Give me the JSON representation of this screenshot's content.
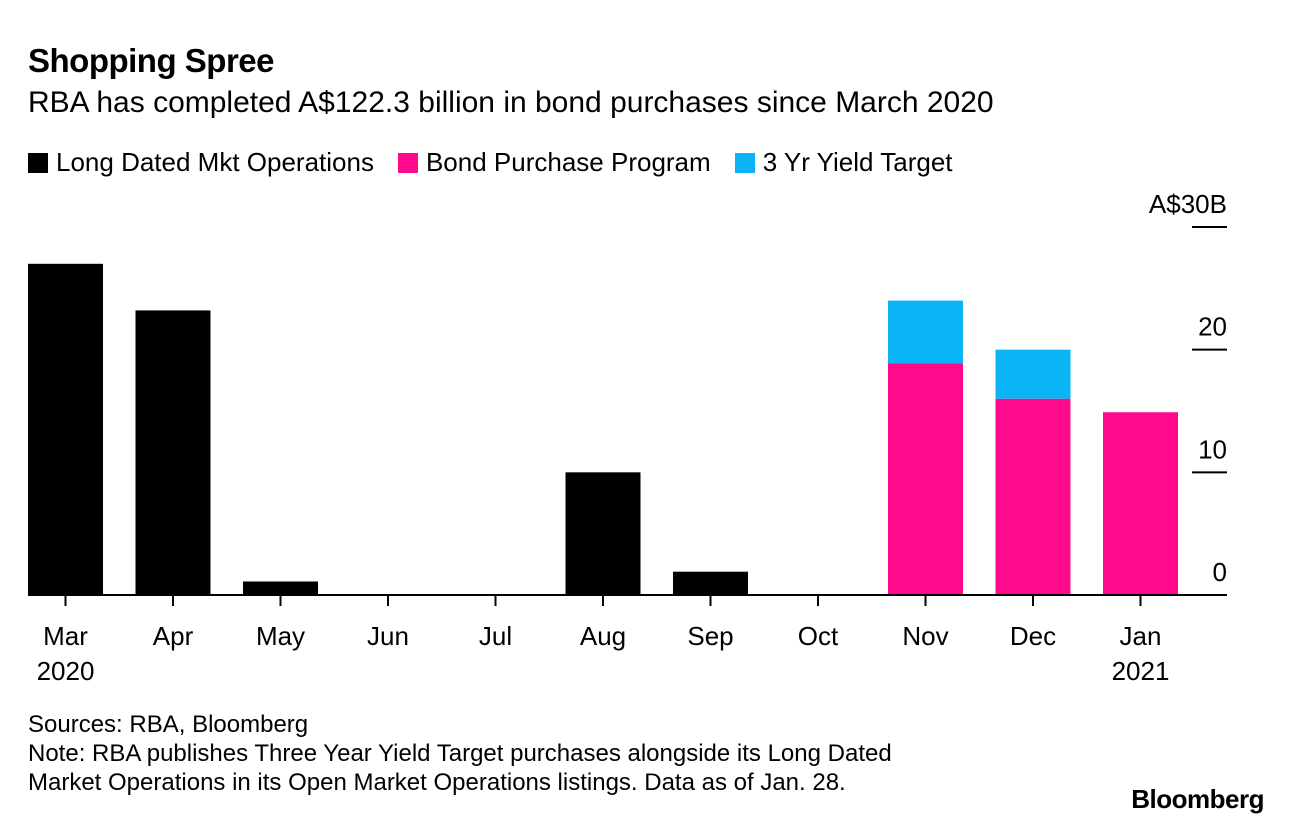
{
  "title": "Shopping Spree",
  "subtitle": "RBA has completed A$122.3 billion in bond purchases since March 2020",
  "colors": {
    "long_dated": "#000000",
    "bond_purchase": "#ff0a8c",
    "yield_target": "#0ab4f5"
  },
  "chart_data": {
    "type": "bar",
    "stacked": true,
    "categories": [
      "Mar",
      "Apr",
      "May",
      "Jun",
      "Jul",
      "Aug",
      "Sep",
      "Oct",
      "Nov",
      "Dec",
      "Jan"
    ],
    "year_labels": {
      "Mar": "2020",
      "Jan": "2021"
    },
    "series": [
      {
        "name": "Long Dated Mkt Operations",
        "color": "#000000",
        "values": [
          27.0,
          23.2,
          1.1,
          0,
          0,
          10.0,
          1.9,
          0,
          0,
          0,
          0
        ]
      },
      {
        "name": "Bond Purchase Program",
        "color": "#ff0a8c",
        "values": [
          0,
          0,
          0,
          0,
          0,
          0,
          0,
          0,
          18.9,
          16.0,
          14.9
        ]
      },
      {
        "name": "3 Yr Yield Target",
        "color": "#0ab4f5",
        "values": [
          0,
          0,
          0,
          0,
          0,
          0,
          0,
          0,
          5.1,
          4.0,
          0
        ]
      }
    ],
    "yticks": [
      {
        "value": 0,
        "label": "0"
      },
      {
        "value": 10,
        "label": "10"
      },
      {
        "value": 20,
        "label": "20"
      },
      {
        "value": 30,
        "label": "A$30B"
      }
    ],
    "ylim": [
      0,
      30
    ],
    "legend_position": "top-left"
  },
  "footer": {
    "sources": "Sources: RBA, Bloomberg",
    "note_line1": "Note: RBA publishes Three Year Yield Target purchases alongside its Long Dated",
    "note_line2": "Market Operations in its Open Market Operations listings. Data as of Jan. 28."
  },
  "brand": "Bloomberg"
}
